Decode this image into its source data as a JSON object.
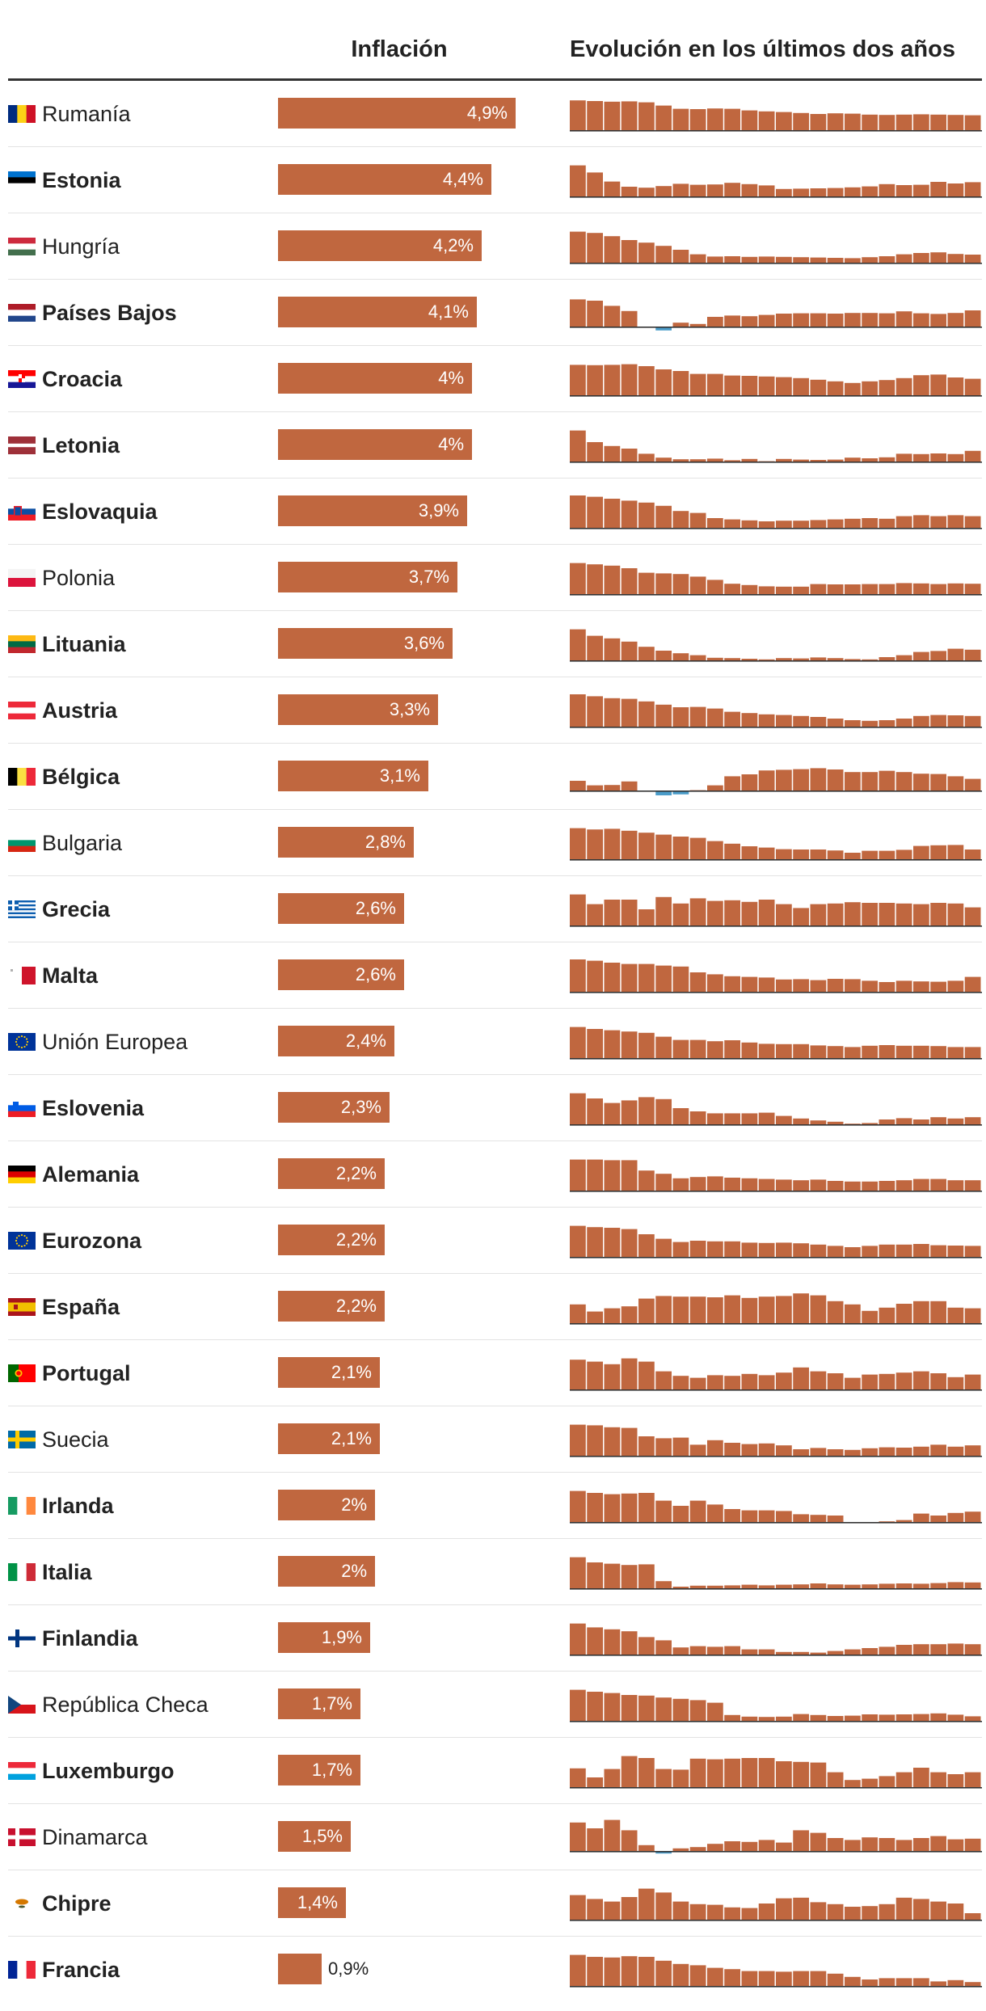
{
  "header": {
    "col_inflation": "Inflación",
    "col_evolution": "Evolución en los últimos dos años"
  },
  "colors": {
    "bar": "#c0673f",
    "negative": "#4a9cc9",
    "axis": "#333333"
  },
  "chart_data": {
    "type": "bar",
    "title": "",
    "xlabel": "Inflación",
    "ylabel": "",
    "xlim": [
      0,
      5
    ],
    "categories": [
      "Rumanía",
      "Estonia",
      "Hungría",
      "Países Bajos",
      "Croacia",
      "Letonia",
      "Eslovaquia",
      "Polonia",
      "Lituania",
      "Austria",
      "Bélgica",
      "Bulgaria",
      "Grecia",
      "Malta",
      "Unión Europea",
      "Eslovenia",
      "Alemania",
      "Eurozona",
      "España",
      "Portugal",
      "Suecia",
      "Irlanda",
      "Italia",
      "Finlandia",
      "República Checa",
      "Luxemburgo",
      "Dinamarca",
      "Chipre",
      "Francia"
    ],
    "values": [
      4.9,
      4.4,
      4.2,
      4.1,
      4.0,
      4.0,
      3.9,
      3.7,
      3.6,
      3.3,
      3.1,
      2.8,
      2.6,
      2.6,
      2.4,
      2.3,
      2.2,
      2.2,
      2.2,
      2.1,
      2.1,
      2.0,
      2.0,
      1.9,
      1.7,
      1.7,
      1.5,
      1.4,
      0.9
    ],
    "labels": [
      "4,9%",
      "4,4%",
      "4,2%",
      "4,1%",
      "4%",
      "4%",
      "3,9%",
      "3,7%",
      "3,6%",
      "3,3%",
      "3,1%",
      "2,8%",
      "2,6%",
      "2,6%",
      "2,4%",
      "2,3%",
      "2,2%",
      "2,2%",
      "2,2%",
      "2,1%",
      "2,1%",
      "2%",
      "2%",
      "1,9%",
      "1,7%",
      "1,7%",
      "1,5%",
      "1,4%",
      "0,9%"
    ],
    "sparkline_note": "Evolución en los últimos dos años (24 meses, valores aproximados)"
  },
  "rows": [
    {
      "name": "Rumanía",
      "bold": false,
      "flag": "ro",
      "spark": [
        9.2,
        9.0,
        8.8,
        8.9,
        8.6,
        7.6,
        6.6,
        6.5,
        6.7,
        6.6,
        6.1,
        5.8,
        5.6,
        5.3,
        5.0,
        5.2,
        5.1,
        4.8,
        4.7,
        4.8,
        4.9,
        4.8,
        4.7,
        4.6
      ]
    },
    {
      "name": "Estonia",
      "bold": true,
      "flag": "ee",
      "spark": [
        9.6,
        7.4,
        4.6,
        3.0,
        2.7,
        3.2,
        3.9,
        3.6,
        3.7,
        4.2,
        3.8,
        3.4,
        2.3,
        2.4,
        2.5,
        2.6,
        2.8,
        3.1,
        3.8,
        3.5,
        3.6,
        4.5,
        4.0,
        4.4
      ]
    },
    {
      "name": "Hungría",
      "bold": false,
      "flag": "hu",
      "spark": [
        9.6,
        9.2,
        8.2,
        7.0,
        6.2,
        5.2,
        4.0,
        2.6,
        1.9,
        2.0,
        1.8,
        1.9,
        1.8,
        1.7,
        1.6,
        1.5,
        1.4,
        1.7,
        2.0,
        2.6,
        3.0,
        3.2,
        2.7,
        2.5
      ]
    },
    {
      "name": "Países Bajos",
      "bold": true,
      "flag": "nl",
      "spark": [
        8.4,
        8.0,
        6.4,
        4.8,
        0.0,
        -1.2,
        1.2,
        0.8,
        3.0,
        3.4,
        3.2,
        3.6,
        4.0,
        4.1,
        4.1,
        4.0,
        4.2,
        4.2,
        4.1,
        4.7,
        4.1,
        3.9,
        4.2,
        5.0
      ]
    },
    {
      "name": "Croacia",
      "bold": true,
      "flag": "hr",
      "spark": [
        9.4,
        9.3,
        9.4,
        9.6,
        9.0,
        8.0,
        7.5,
        6.6,
        6.6,
        6.1,
        6.0,
        5.8,
        5.6,
        5.3,
        4.8,
        4.3,
        3.8,
        4.3,
        4.7,
        5.3,
        6.2,
        6.4,
        5.5,
        5.1
      ]
    },
    {
      "name": "Letonia",
      "bold": true,
      "flag": "lv",
      "spark": [
        9.6,
        6.0,
        4.8,
        4.0,
        2.4,
        1.2,
        0.7,
        0.7,
        0.9,
        0.4,
        0.8,
        0.1,
        0.8,
        0.6,
        0.5,
        0.6,
        1.2,
        1.0,
        1.3,
        2.4,
        2.3,
        2.5,
        2.3,
        3.3
      ]
    },
    {
      "name": "Eslovaquia",
      "bold": true,
      "flag": "sk",
      "spark": [
        10.0,
        9.6,
        9.0,
        8.4,
        7.8,
        6.8,
        5.2,
        4.6,
        3.0,
        2.6,
        2.3,
        2.0,
        2.2,
        2.2,
        2.4,
        2.6,
        2.8,
        3.0,
        2.8,
        3.6,
        3.9,
        3.6,
        3.9,
        3.6
      ]
    },
    {
      "name": "Polonia",
      "bold": false,
      "flag": "pl",
      "spark": [
        9.6,
        9.2,
        8.8,
        8.0,
        6.6,
        6.4,
        6.2,
        5.4,
        4.4,
        3.2,
        2.8,
        2.4,
        2.3,
        2.3,
        3.1,
        3.0,
        3.0,
        3.1,
        3.1,
        3.4,
        3.3,
        3.1,
        3.3,
        3.2
      ]
    },
    {
      "name": "Lituania",
      "bold": true,
      "flag": "lt",
      "spark": [
        9.6,
        7.6,
        6.8,
        5.8,
        4.2,
        3.0,
        2.2,
        1.6,
        0.8,
        0.7,
        0.5,
        0.3,
        0.7,
        0.6,
        0.9,
        0.7,
        0.4,
        0.3,
        1.0,
        1.6,
        2.6,
        2.9,
        3.6,
        3.3
      ]
    },
    {
      "name": "Austria",
      "bold": true,
      "flag": "at",
      "spark": [
        10.0,
        9.4,
        8.8,
        8.6,
        7.8,
        6.8,
        6.0,
        6.1,
        5.6,
        4.6,
        4.2,
        3.8,
        3.6,
        3.3,
        3.0,
        2.5,
        2.0,
        1.8,
        2.0,
        2.5,
        3.3,
        3.6,
        3.5,
        3.3
      ]
    },
    {
      "name": "Bélgica",
      "bold": true,
      "flag": "be",
      "spark": [
        3.0,
        1.6,
        1.7,
        2.8,
        0.0,
        -1.5,
        -1.2,
        0.1,
        1.6,
        4.4,
        5.0,
        6.2,
        6.4,
        6.6,
        6.9,
        6.5,
        5.7,
        5.7,
        6.1,
        5.7,
        5.2,
        5.1,
        4.4,
        3.6
      ]
    },
    {
      "name": "Bulgaria",
      "bold": false,
      "flag": "bg",
      "spark": [
        9.6,
        9.2,
        9.4,
        8.8,
        8.2,
        7.6,
        7.0,
        6.6,
        5.6,
        4.8,
        4.0,
        3.6,
        3.1,
        3.0,
        3.0,
        2.7,
        2.0,
        2.6,
        2.6,
        2.9,
        4.1,
        4.3,
        4.4,
        3.0
      ]
    },
    {
      "name": "Grecia",
      "bold": true,
      "flag": "gr",
      "spark": [
        9.6,
        6.6,
        8.0,
        8.0,
        5.0,
        8.8,
        6.8,
        8.4,
        7.6,
        7.8,
        7.3,
        8.0,
        6.6,
        5.4,
        6.6,
        6.8,
        7.2,
        7.0,
        7.0,
        6.8,
        6.6,
        7.0,
        6.8,
        5.6
      ]
    },
    {
      "name": "Malta",
      "bold": true,
      "flag": "mt",
      "spark": [
        10.0,
        9.6,
        9.0,
        8.6,
        8.6,
        8.1,
        7.8,
        6.0,
        5.4,
        4.8,
        4.6,
        4.4,
        3.8,
        3.9,
        3.6,
        4.0,
        3.9,
        3.4,
        3.0,
        3.4,
        3.2,
        3.1,
        3.4,
        4.6
      ]
    },
    {
      "name": "Unión Europea",
      "bold": false,
      "flag": "eu",
      "spark": [
        9.6,
        9.0,
        8.6,
        8.2,
        7.8,
        6.6,
        5.6,
        5.6,
        5.2,
        5.5,
        4.8,
        4.4,
        4.3,
        4.3,
        3.9,
        3.7,
        3.4,
        3.8,
        4.0,
        3.8,
        3.8,
        3.7,
        3.4,
        3.4
      ]
    },
    {
      "name": "Eslovenia",
      "bold": true,
      "flag": "si",
      "spark": [
        9.6,
        8.0,
        6.6,
        7.4,
        8.4,
        7.8,
        5.0,
        4.0,
        3.4,
        3.4,
        3.4,
        3.6,
        2.6,
        1.8,
        1.2,
        0.8,
        0.2,
        0.4,
        1.5,
        1.9,
        1.5,
        2.2,
        1.8,
        2.2
      ]
    },
    {
      "name": "Alemania",
      "bold": true,
      "flag": "de",
      "spark": [
        9.6,
        9.6,
        9.4,
        9.4,
        6.2,
        5.2,
        3.8,
        4.2,
        4.4,
        4.0,
        3.8,
        3.6,
        3.4,
        3.2,
        3.4,
        3.0,
        2.8,
        2.8,
        3.0,
        3.2,
        3.6,
        3.6,
        3.2,
        3.2
      ]
    },
    {
      "name": "Eurozona",
      "bold": true,
      "flag": "eu",
      "spark": [
        9.6,
        9.2,
        9.0,
        8.6,
        7.0,
        5.6,
        4.6,
        5.0,
        4.8,
        4.8,
        4.4,
        4.3,
        4.4,
        4.2,
        3.8,
        3.4,
        3.0,
        3.4,
        3.8,
        3.8,
        4.0,
        3.6,
        3.5,
        3.4
      ]
    },
    {
      "name": "España",
      "bold": true,
      "flag": "es",
      "spark": [
        5.8,
        3.6,
        4.6,
        5.2,
        7.6,
        8.4,
        8.2,
        8.2,
        8.0,
        8.6,
        7.8,
        8.2,
        8.4,
        9.2,
        8.6,
        6.8,
        5.8,
        3.8,
        4.8,
        6.0,
        6.8,
        6.8,
        4.8,
        4.6
      ]
    },
    {
      "name": "Portugal",
      "bold": true,
      "flag": "pt",
      "spark": [
        9.2,
        8.6,
        7.8,
        9.6,
        8.6,
        5.6,
        4.2,
        3.6,
        4.4,
        4.2,
        4.8,
        4.4,
        5.2,
        6.8,
        5.6,
        5.0,
        3.6,
        4.6,
        4.8,
        5.2,
        5.6,
        5.0,
        3.8,
        4.6
      ]
    },
    {
      "name": "Suecia",
      "bold": false,
      "flag": "se",
      "spark": [
        9.6,
        9.4,
        8.8,
        8.6,
        6.0,
        5.4,
        5.6,
        3.4,
        4.8,
        4.0,
        3.6,
        3.8,
        3.2,
        2.0,
        2.4,
        2.0,
        1.8,
        2.3,
        2.6,
        2.5,
        2.8,
        3.4,
        2.8,
        3.2
      ]
    },
    {
      "name": "Irlanda",
      "bold": true,
      "flag": "ie",
      "spark": [
        9.6,
        9.0,
        8.6,
        8.8,
        9.0,
        6.6,
        5.0,
        6.6,
        5.4,
        4.0,
        3.6,
        3.6,
        3.4,
        2.4,
        2.2,
        2.0,
        0.0,
        0.0,
        0.2,
        0.6,
        2.6,
        2.0,
        2.8,
        3.2
      ]
    },
    {
      "name": "Italia",
      "bold": true,
      "flag": "it",
      "spark": [
        9.6,
        8.0,
        7.6,
        7.2,
        7.4,
        2.2,
        0.5,
        0.8,
        0.8,
        0.9,
        1.1,
        0.9,
        1.1,
        1.2,
        1.5,
        1.2,
        1.1,
        1.2,
        1.4,
        1.5,
        1.4,
        1.6,
        1.9,
        1.8
      ]
    },
    {
      "name": "Finlandia",
      "bold": true,
      "flag": "fi",
      "spark": [
        9.6,
        8.4,
        7.8,
        7.2,
        5.4,
        4.4,
        2.2,
        2.6,
        2.4,
        2.6,
        1.6,
        1.6,
        0.8,
        0.8,
        0.6,
        1.1,
        1.6,
        2.0,
        2.4,
        3.0,
        3.2,
        3.2,
        3.4,
        3.2
      ]
    },
    {
      "name": "República Checa",
      "bold": false,
      "flag": "cz",
      "spark": [
        9.6,
        9.0,
        8.6,
        8.0,
        7.8,
        7.2,
        6.8,
        6.4,
        5.6,
        1.8,
        1.3,
        1.2,
        1.3,
        2.1,
        1.8,
        1.5,
        1.6,
        2.0,
        1.9,
        2.0,
        2.1,
        2.3,
        1.9,
        1.4
      ]
    },
    {
      "name": "Luxemburgo",
      "bold": true,
      "flag": "lu",
      "spark": [
        5.8,
        3.0,
        5.6,
        9.6,
        9.0,
        5.6,
        5.4,
        8.8,
        8.6,
        8.8,
        9.0,
        9.0,
        8.0,
        7.8,
        7.6,
        4.6,
        2.2,
        2.6,
        3.4,
        4.6,
        6.0,
        4.6,
        4.0,
        4.6
      ]
    },
    {
      "name": "Dinamarca",
      "bold": false,
      "flag": "dk",
      "spark": [
        8.8,
        7.0,
        9.6,
        6.4,
        1.8,
        -0.8,
        0.8,
        1.2,
        2.2,
        3.0,
        2.8,
        3.4,
        2.6,
        6.4,
        5.6,
        4.0,
        3.4,
        4.2,
        4.0,
        3.4,
        4.0,
        4.6,
        3.6,
        3.8
      ]
    },
    {
      "name": "Chipre",
      "bold": true,
      "flag": "cy",
      "spark": [
        7.6,
        6.4,
        5.6,
        7.0,
        9.6,
        8.4,
        5.6,
        4.8,
        4.6,
        3.8,
        3.6,
        5.0,
        6.6,
        6.8,
        5.4,
        4.8,
        4.0,
        4.2,
        4.8,
        6.8,
        6.4,
        5.6,
        5.0,
        2.0
      ]
    },
    {
      "name": "Francia",
      "bold": true,
      "flag": "fr",
      "spark": [
        9.6,
        9.0,
        8.8,
        9.2,
        9.0,
        7.8,
        6.8,
        6.4,
        5.6,
        5.2,
        4.6,
        4.6,
        4.4,
        4.6,
        4.6,
        3.8,
        2.8,
        2.0,
        2.4,
        2.4,
        2.4,
        1.4,
        1.8,
        1.2
      ]
    }
  ]
}
